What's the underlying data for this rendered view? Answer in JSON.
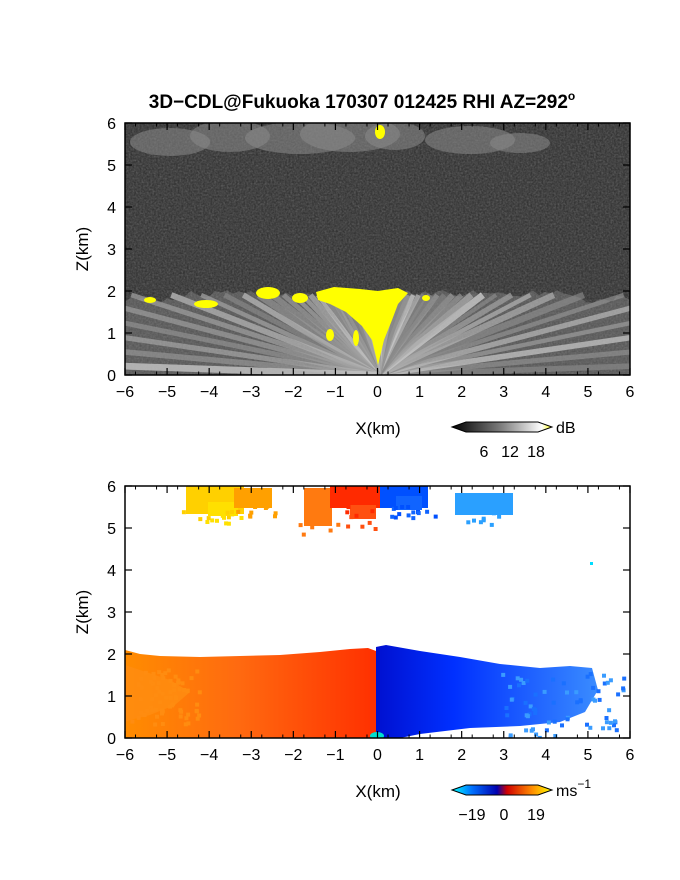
{
  "title": {
    "text": "3D−CDL@Fukuoka 170307 012425 RHI AZ=292",
    "deg": "o"
  },
  "chart_data": [
    {
      "type": "heatmap",
      "name": "reflectivity-rhi",
      "xlabel": "X(km)",
      "ylabel": "Z(km)",
      "xlim": [
        -6,
        6
      ],
      "ylim": [
        0,
        6
      ],
      "xticks": [
        "−6",
        "−5",
        "−4",
        "−3",
        "−2",
        "−1",
        "0",
        "1",
        "2",
        "3",
        "4",
        "5",
        "6"
      ],
      "yticks": [
        "0",
        "1",
        "2",
        "3",
        "4",
        "5",
        "6"
      ],
      "colorbar": {
        "unit": "dB",
        "ticks": [
          "6",
          "12",
          "18"
        ],
        "range": [
          0,
          20
        ],
        "colors": [
          "#000000",
          "#606060",
          "#c8c8c8",
          "#ffffff",
          "#ffff00"
        ]
      },
      "features": [
        {
          "label": "boundary layer top",
          "z_km": 2.0,
          "x_range": [
            -6,
            6
          ]
        },
        {
          "label": "strong echo (yellow)",
          "x_range": [
            -1.3,
            0.7
          ],
          "z_range": [
            1.5,
            2.05
          ]
        },
        {
          "label": "upper cloud layer",
          "x_range": [
            -4.5,
            3.5
          ],
          "z_range": [
            5.4,
            6.0
          ]
        }
      ]
    },
    {
      "type": "heatmap",
      "name": "doppler-velocity-rhi",
      "xlabel": "X(km)",
      "ylabel": "Z(km)",
      "xlim": [
        -6,
        6
      ],
      "ylim": [
        0,
        6
      ],
      "xticks": [
        "−6",
        "−5",
        "−4",
        "−3",
        "−2",
        "−1",
        "0",
        "1",
        "2",
        "3",
        "4",
        "5",
        "6"
      ],
      "yticks": [
        "0",
        "1",
        "2",
        "3",
        "4",
        "5",
        "6"
      ],
      "colorbar": {
        "unit": "ms",
        "unit_sup": "−1",
        "ticks": [
          "−19",
          "0",
          "19"
        ],
        "range": [
          -19,
          19
        ],
        "colors": [
          "#00ffff",
          "#0055ff",
          "#0000c8",
          "#ff0000",
          "#ff8c00",
          "#ffff00"
        ]
      },
      "features": [
        {
          "label": "receding (positive, warm)",
          "x_range": [
            -6,
            0
          ],
          "z_range": [
            0,
            2.1
          ]
        },
        {
          "label": "approaching (negative, cool)",
          "x_range": [
            0,
            5.2
          ],
          "z_range": [
            0,
            2.2
          ]
        },
        {
          "label": "upper layer velocities",
          "x_range": [
            -4.5,
            3.2
          ],
          "z_range": [
            5.4,
            6.0
          ]
        }
      ]
    }
  ]
}
